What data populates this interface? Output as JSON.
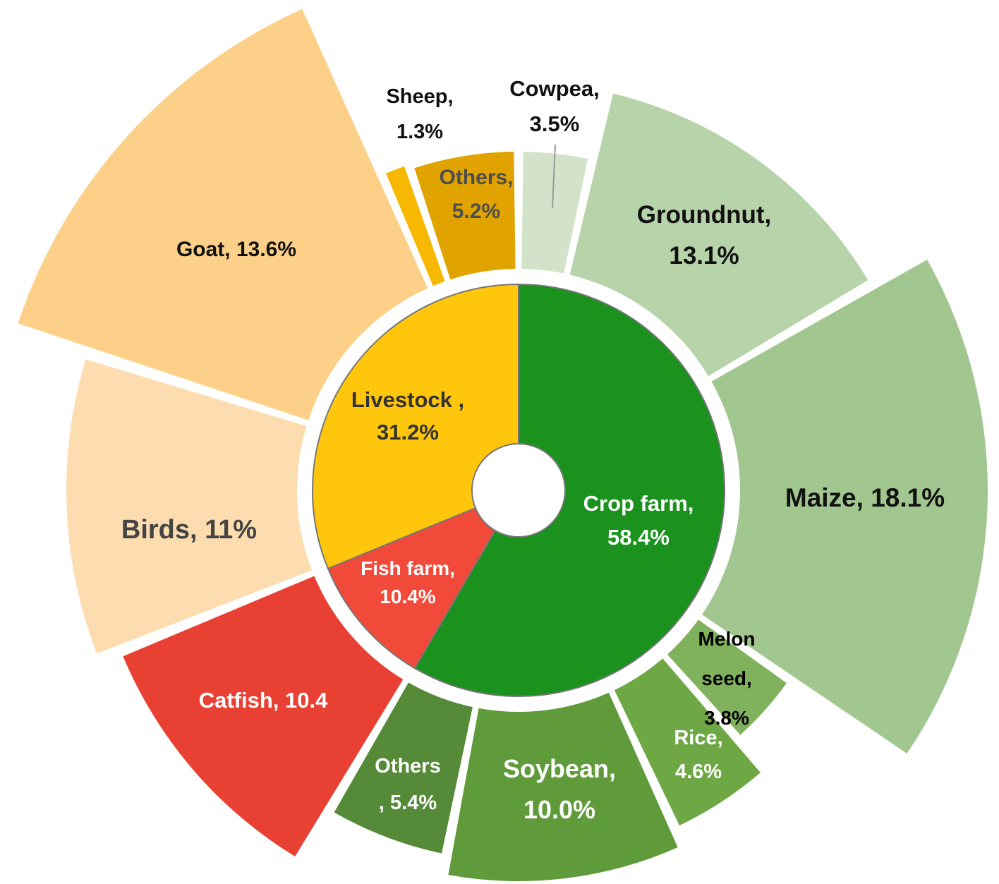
{
  "chart_data": {
    "type": "sunburst",
    "title": "",
    "inner": [
      {
        "name": "Crop farm",
        "value": 58.4,
        "label": [
          "Crop farm,",
          "58.4%"
        ],
        "color": "#1B911E",
        "text_color": "#ffffff"
      },
      {
        "name": "Fish farm",
        "value": 10.4,
        "label": [
          "Fish farm,",
          "10.4%"
        ],
        "color": "#F24A3A",
        "text_color": "#ffffff"
      },
      {
        "name": "Livestock",
        "value": 31.2,
        "label": [
          "Livestock ,",
          "31.2%"
        ],
        "color": "#FFC60B",
        "text_color": "#333333"
      }
    ],
    "outer": [
      {
        "name": "Cowpea",
        "parent": "Crop farm",
        "value": 3.5,
        "label": [
          "Cowpea,",
          "3.5%"
        ],
        "color": "#D2E3CA",
        "text_color": "#111111"
      },
      {
        "name": "Groundnut",
        "parent": "Crop farm",
        "value": 13.1,
        "label": [
          "Groundnut,",
          "13.1%"
        ],
        "color": "#B6D3AA",
        "text_color": "#111111"
      },
      {
        "name": "Maize",
        "parent": "Crop farm",
        "value": 18.1,
        "label": [
          "Maize, 18.1%"
        ],
        "color": "#A2C68F",
        "text_color": "#111111"
      },
      {
        "name": "Melon seed",
        "parent": "Crop farm",
        "value": 3.8,
        "label": [
          "Melon",
          "seed,",
          "3.8%"
        ],
        "color": "#80B25D",
        "text_color": "#000000"
      },
      {
        "name": "Rice",
        "parent": "Crop farm",
        "value": 4.6,
        "label": [
          "Rice,",
          "4.6%"
        ],
        "color": "#6EA845",
        "text_color": "#ffffff"
      },
      {
        "name": "Soybean",
        "parent": "Crop farm",
        "value": 10.0,
        "label": [
          "Soybean,",
          "10.0%"
        ],
        "color": "#5F9B3B",
        "text_color": "#ffffff"
      },
      {
        "name": "Others",
        "parent": "Crop farm",
        "value": 5.4,
        "label": [
          "Others",
          ", 5.4%"
        ],
        "color": "#558A38",
        "text_color": "#ffffff"
      },
      {
        "name": "Catfish",
        "parent": "Fish farm",
        "value": 10.4,
        "label": [
          "Catfish, 10.4"
        ],
        "color": "#E84134",
        "text_color": "#ffffff"
      },
      {
        "name": "Birds",
        "parent": "Livestock",
        "value": 11,
        "label": [
          "Birds, 11%"
        ],
        "color": "#FDDDB0",
        "text_color": "#444444"
      },
      {
        "name": "Goat",
        "parent": "Livestock",
        "value": 13.6,
        "label": [
          "Goat, 13.6%"
        ],
        "color": "#FDD089",
        "text_color": "#111111"
      },
      {
        "name": "Sheep",
        "parent": "Livestock",
        "value": 1.3,
        "label": [
          "Sheep,",
          "1.3%"
        ],
        "color": "#F6B800",
        "text_color": "#111111"
      },
      {
        "name": "Others",
        "parent": "Livestock",
        "value": 5.2,
        "label": [
          "Others,",
          "5.2%"
        ],
        "color": "#E0A300",
        "text_color": "#4d4d4d"
      }
    ]
  }
}
